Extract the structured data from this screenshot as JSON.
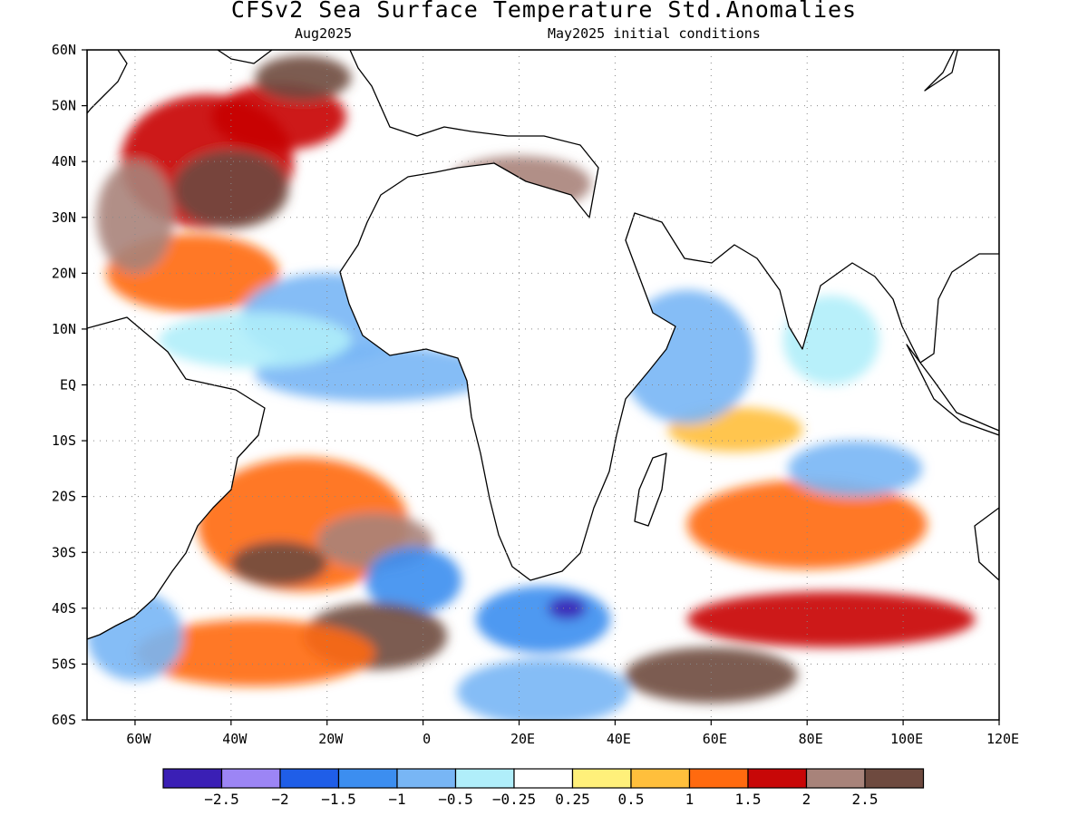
{
  "title": "CFSv2 Sea Surface Temperature Std.Anomalies",
  "subtitle_left": "Aug2025",
  "subtitle_right": "May2025 initial conditions",
  "map": {
    "projection": "equirectangular",
    "lon_range": [
      -70,
      120
    ],
    "lat_range": [
      -60,
      60
    ],
    "grid": "dotted",
    "lat_labels": [
      "60N",
      "50N",
      "40N",
      "30N",
      "20N",
      "10N",
      "EQ",
      "10S",
      "20S",
      "30S",
      "40S",
      "50S",
      "60S"
    ],
    "lat_values": [
      60,
      50,
      40,
      30,
      20,
      10,
      0,
      -10,
      -20,
      -30,
      -40,
      -50,
      -60
    ],
    "lon_labels": [
      "60W",
      "40W",
      "20W",
      "0",
      "20E",
      "40E",
      "60E",
      "80E",
      "100E",
      "120E"
    ],
    "lon_values": [
      -60,
      -40,
      -20,
      0,
      20,
      40,
      60,
      80,
      100,
      120
    ]
  },
  "colorbar": {
    "colors": [
      "#3a1fb5",
      "#9c85f5",
      "#1f5ee8",
      "#3c8ef0",
      "#78b6f5",
      "#b0eefa",
      "#ffffff",
      "#fff07a",
      "#ffbf3c",
      "#ff6a0f",
      "#c80707",
      "#a8837a",
      "#6e4a3f"
    ],
    "labels": [
      "−2.5",
      "−2",
      "−1.5",
      "−1",
      "−0.5",
      "−0.25",
      "0.25",
      "0.5",
      "1",
      "1.5",
      "2",
      "2.5"
    ]
  },
  "chart_data": {
    "type": "heatmap",
    "title": "CFSv2 Sea Surface Temperature Std.Anomalies",
    "subtitle": "Aug2025 / May2025 initial conditions",
    "xlim": [
      -70,
      120
    ],
    "ylim": [
      -60,
      60
    ],
    "levels": [
      -2.5,
      -2,
      -1.5,
      -1,
      -0.5,
      -0.25,
      0.25,
      0.5,
      1,
      1.5,
      2,
      2.5
    ],
    "regions": [
      {
        "lon": -45,
        "lat": 40,
        "rx": 18,
        "ry": 12,
        "value": 1.6
      },
      {
        "lon": -40,
        "lat": 35,
        "rx": 12,
        "ry": 7,
        "value": 2.6
      },
      {
        "lon": -30,
        "lat": 48,
        "rx": 14,
        "ry": 6,
        "value": 1.8
      },
      {
        "lon": -25,
        "lat": 55,
        "rx": 10,
        "ry": 4,
        "value": 2.7
      },
      {
        "lon": -48,
        "lat": 20,
        "rx": 18,
        "ry": 7,
        "value": 1.2
      },
      {
        "lon": -60,
        "lat": 30,
        "rx": 8,
        "ry": 10,
        "value": 2.1
      },
      {
        "lon": -20,
        "lat": 12,
        "rx": 18,
        "ry": 8,
        "value": -0.7
      },
      {
        "lon": -10,
        "lat": 2,
        "rx": 25,
        "ry": 5,
        "value": -0.8
      },
      {
        "lon": -35,
        "lat": 8,
        "rx": 20,
        "ry": 5,
        "value": -0.5
      },
      {
        "lon": -25,
        "lat": -25,
        "rx": 22,
        "ry": 12,
        "value": 1.2
      },
      {
        "lon": -30,
        "lat": -32,
        "rx": 10,
        "ry": 4,
        "value": 2.5
      },
      {
        "lon": -10,
        "lat": -28,
        "rx": 12,
        "ry": 5,
        "value": 2.0
      },
      {
        "lon": -2,
        "lat": -35,
        "rx": 10,
        "ry": 6,
        "value": -1.2
      },
      {
        "lon": -10,
        "lat": -45,
        "rx": 15,
        "ry": 6,
        "value": 2.6
      },
      {
        "lon": -35,
        "lat": -48,
        "rx": 25,
        "ry": 6,
        "value": 1.4
      },
      {
        "lon": -60,
        "lat": -45,
        "rx": 10,
        "ry": 8,
        "value": -0.6
      },
      {
        "lon": 25,
        "lat": -42,
        "rx": 14,
        "ry": 6,
        "value": -1.5
      },
      {
        "lon": 30,
        "lat": -40,
        "rx": 4,
        "ry": 2,
        "value": -2.6
      },
      {
        "lon": 25,
        "lat": -55,
        "rx": 18,
        "ry": 6,
        "value": -0.7
      },
      {
        "lon": 60,
        "lat": -52,
        "rx": 18,
        "ry": 5,
        "value": 2.6
      },
      {
        "lon": 85,
        "lat": -42,
        "rx": 30,
        "ry": 5,
        "value": 1.5
      },
      {
        "lon": 80,
        "lat": -25,
        "rx": 25,
        "ry": 8,
        "value": 1.3
      },
      {
        "lon": 90,
        "lat": -15,
        "rx": 14,
        "ry": 5,
        "value": -0.6
      },
      {
        "lon": 65,
        "lat": -8,
        "rx": 14,
        "ry": 4,
        "value": 0.9
      },
      {
        "lon": 55,
        "lat": 5,
        "rx": 14,
        "ry": 12,
        "value": -0.9
      },
      {
        "lon": 85,
        "lat": 8,
        "rx": 10,
        "ry": 8,
        "value": -0.3
      },
      {
        "lon": 20,
        "lat": 36,
        "rx": 15,
        "ry": 5,
        "value": 2.3
      }
    ]
  }
}
